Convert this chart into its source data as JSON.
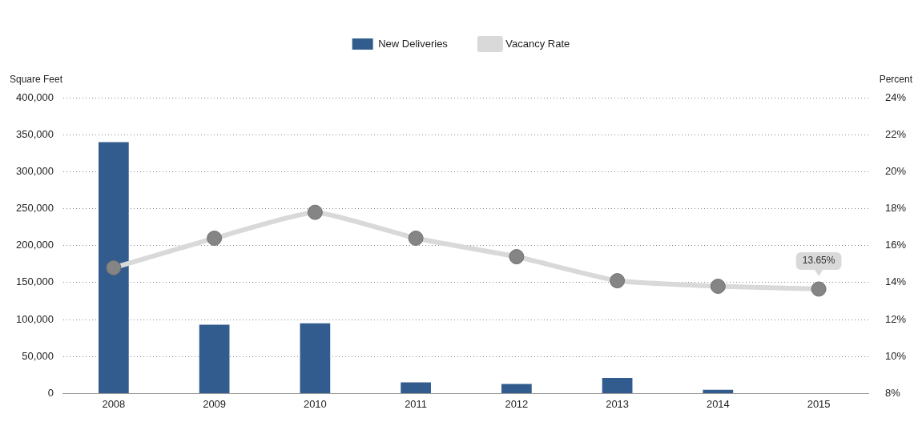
{
  "chart_data": {
    "type": "bar",
    "categories": [
      "2008",
      "2009",
      "2010",
      "2011",
      "2012",
      "2013",
      "2014",
      "2015"
    ],
    "series": [
      {
        "name": "New Deliveries",
        "color": "#335c8e",
        "values": [
          340000,
          93000,
          95000,
          15000,
          13000,
          21000,
          5000,
          0
        ]
      },
      {
        "name": "Vacancy Rate",
        "type": "line",
        "axis": "y2",
        "color": "#d9d9d9",
        "marker": "circle",
        "values": [
          14.8,
          16.4,
          17.8,
          16.4,
          15.4,
          14.1,
          13.8,
          13.65
        ],
        "value_labels": [
          null,
          null,
          null,
          null,
          null,
          null,
          null,
          "13.65%"
        ]
      }
    ],
    "ylabel": "Square Feet",
    "y2label": "Percent",
    "ylim": [
      0,
      400000
    ],
    "yticks": [
      {
        "value": 0,
        "label": "0"
      },
      {
        "value": 50000,
        "label": "50,000"
      },
      {
        "value": 100000,
        "label": "100,000"
      },
      {
        "value": 150000,
        "label": "150,000"
      },
      {
        "value": 200000,
        "label": "200,000"
      },
      {
        "value": 250000,
        "label": "250,000"
      },
      {
        "value": 300000,
        "label": "300,000"
      },
      {
        "value": 350000,
        "label": "350,000"
      },
      {
        "value": 400000,
        "label": "400,000"
      }
    ],
    "y2lim": [
      8,
      24
    ],
    "y2ticks": [
      {
        "value": 8,
        "label": "8%"
      },
      {
        "value": 10,
        "label": "10%"
      },
      {
        "value": 12,
        "label": "12%"
      },
      {
        "value": 14,
        "label": "14%"
      },
      {
        "value": 16,
        "label": "16%"
      },
      {
        "value": 18,
        "label": "18%"
      },
      {
        "value": 20,
        "label": "20%"
      },
      {
        "value": 22,
        "label": "22%"
      },
      {
        "value": 24,
        "label": "24%"
      }
    ],
    "grid": "y",
    "legend": "top"
  }
}
